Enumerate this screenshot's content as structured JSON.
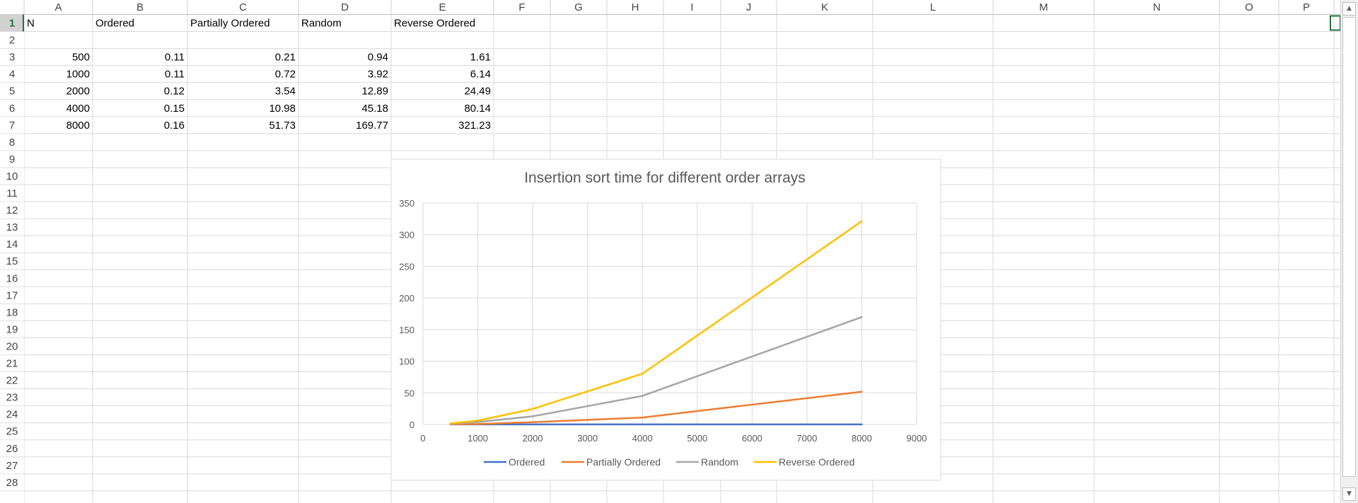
{
  "sheet": {
    "columns": [
      "A",
      "B",
      "C",
      "D",
      "E",
      "F",
      "G",
      "H",
      "I",
      "J",
      "K",
      "L",
      "M",
      "N",
      "O",
      "P"
    ],
    "rows": [
      "1",
      "2",
      "3",
      "4",
      "5",
      "6",
      "7",
      "8",
      "9",
      "10",
      "11",
      "12",
      "13",
      "14",
      "15",
      "16",
      "17",
      "18",
      "19",
      "20",
      "21",
      "22",
      "23",
      "24",
      "25",
      "26",
      "27",
      "28"
    ],
    "selected_row": "1",
    "headers": [
      "N",
      "Ordered",
      "Partially Ordered",
      "Random",
      "Reverse Ordered"
    ],
    "data_rows": [
      [
        "500",
        "0.11",
        "0.21",
        "0.94",
        "1.61"
      ],
      [
        "1000",
        "0.11",
        "0.72",
        "3.92",
        "6.14"
      ],
      [
        "2000",
        "0.12",
        "3.54",
        "12.89",
        "24.49"
      ],
      [
        "4000",
        "0.15",
        "10.98",
        "45.18",
        "80.14"
      ],
      [
        "8000",
        "0.16",
        "51.73",
        "169.77",
        "321.23"
      ]
    ]
  },
  "chart_data": {
    "type": "line",
    "title": "Insertion sort time for different order arrays",
    "xlabel": "",
    "ylabel": "",
    "x": [
      500,
      1000,
      2000,
      4000,
      8000
    ],
    "xlim": [
      0,
      9000
    ],
    "ylim": [
      0,
      350
    ],
    "x_ticks": [
      0,
      1000,
      2000,
      3000,
      4000,
      5000,
      6000,
      7000,
      8000,
      9000
    ],
    "y_ticks": [
      0,
      50,
      100,
      150,
      200,
      250,
      300,
      350
    ],
    "grid": true,
    "legend_position": "bottom",
    "series": [
      {
        "name": "Ordered",
        "color": "#4472c4",
        "values": [
          0.11,
          0.11,
          0.12,
          0.15,
          0.16
        ]
      },
      {
        "name": "Partially Ordered",
        "color": "#ed7d31",
        "values": [
          0.21,
          0.72,
          3.54,
          10.98,
          51.73
        ]
      },
      {
        "name": "Random",
        "color": "#a5a5a5",
        "values": [
          0.94,
          3.92,
          12.89,
          45.18,
          169.77
        ]
      },
      {
        "name": "Reverse Ordered",
        "color": "#ffc000",
        "values": [
          1.61,
          6.14,
          24.49,
          80.14,
          321.23
        ]
      }
    ]
  }
}
